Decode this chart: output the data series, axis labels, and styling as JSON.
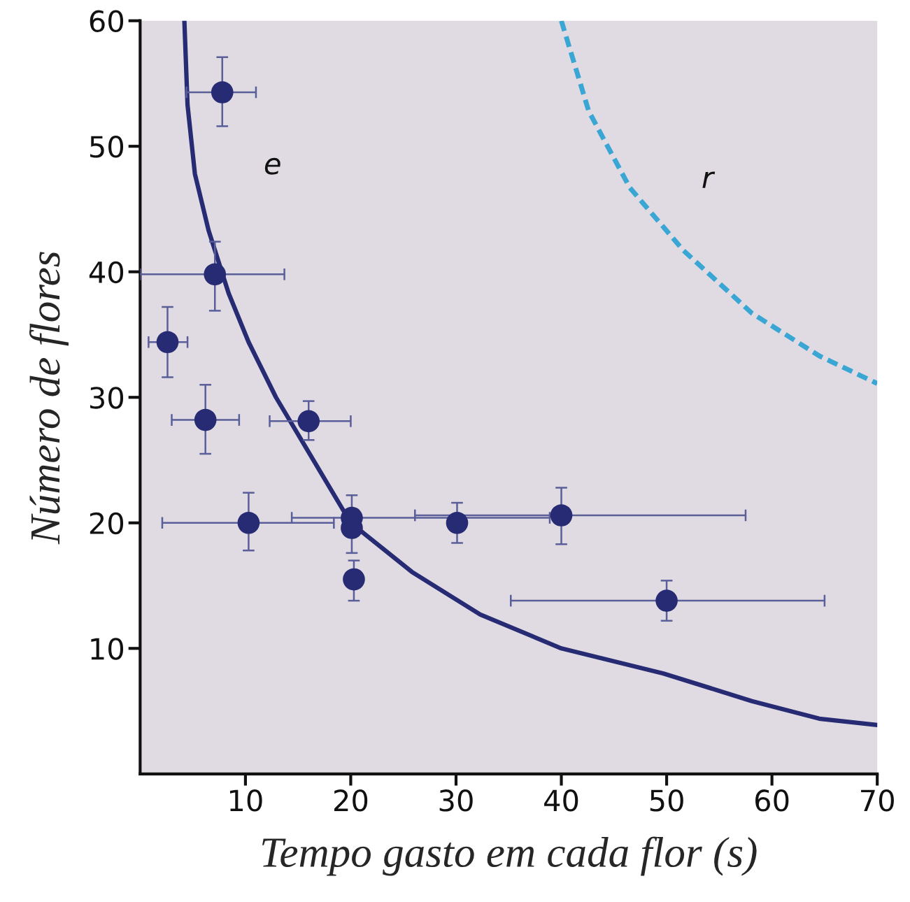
{
  "chart_data": {
    "type": "scatter",
    "xlabel": "Tempo gasto em cada flor (s)",
    "ylabel": "Número de flores",
    "xlim": [
      0,
      70
    ],
    "ylim": [
      0,
      60
    ],
    "xticks": [
      10,
      20,
      30,
      40,
      50,
      60,
      70
    ],
    "yticks": [
      10,
      20,
      30,
      40,
      50,
      60
    ],
    "grid": false,
    "legend": false,
    "series": [
      {
        "marker": "circle",
        "color": "#262b73",
        "x": [
          7.8,
          7.1,
          2.6,
          6.2,
          16.0,
          10.3,
          20.1,
          20.1,
          30.1,
          40.0,
          20.3,
          50.0
        ],
        "values": [
          54.3,
          39.8,
          34.4,
          28.2,
          28.1,
          20.0,
          20.4,
          19.6,
          20.0,
          20.6,
          15.5,
          13.8
        ],
        "errors": [
          [
            51.6,
            57.1
          ],
          [
            36.9,
            42.4
          ],
          [
            31.6,
            37.2
          ],
          [
            25.5,
            31.0
          ],
          [
            26.6,
            29.7
          ],
          [
            17.8,
            22.4
          ],
          [
            17.6,
            22.2
          ],
          null,
          [
            18.4,
            21.6
          ],
          [
            18.3,
            22.8
          ],
          [
            13.8,
            17.0
          ],
          [
            12.2,
            15.4
          ]
        ],
        "xerrors": [
          [
            4.4,
            11.0
          ],
          [
            0,
            13.7
          ],
          [
            0.8,
            4.5
          ],
          [
            3.0,
            9.4
          ],
          [
            12.3,
            20.0
          ],
          [
            2.1,
            18.4
          ],
          [
            14.4,
            38.9
          ],
          null,
          null,
          [
            26.1,
            57.5
          ],
          null,
          [
            35.2,
            65.0
          ]
        ]
      },
      {
        "type": "line",
        "name": "e",
        "color": "#262b73",
        "line_style": "solid",
        "x": [
          4.2,
          4.5,
          5.2,
          6.5,
          8.4,
          10.3,
          12.9,
          16.1,
          20.0,
          25.8,
          32.3,
          40.0,
          49.7,
          58.1,
          64.5,
          70.0
        ],
        "values": [
          60,
          53.3,
          47.8,
          43.3,
          38.3,
          34.4,
          30.0,
          25.5,
          20.0,
          16.1,
          12.7,
          10.0,
          8.0,
          5.8,
          4.4,
          3.9
        ]
      },
      {
        "type": "line",
        "name": "r",
        "color": "#3aa6d4",
        "line_style": "dashed",
        "x": [
          40.0,
          42.6,
          46.5,
          51.6,
          58.1,
          64.5,
          70.0
        ],
        "values": [
          60,
          52.8,
          46.7,
          41.7,
          36.7,
          33.3,
          31.1
        ]
      }
    ]
  }
}
